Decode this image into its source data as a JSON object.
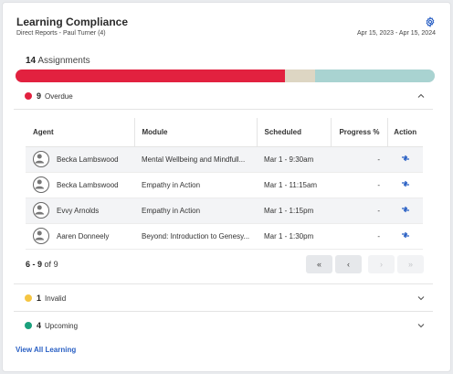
{
  "card": {
    "title": "Learning Compliance",
    "subtitle": "Direct Reports - Paul Turner (4)",
    "date_range": "Apr 15, 2023 - Apr 15, 2024",
    "settings_icon": "gear-icon"
  },
  "summary": {
    "count": "14",
    "label": "Assignments",
    "segments": [
      {
        "name": "overdue",
        "value": 9,
        "color": "#e2213f"
      },
      {
        "name": "invalid",
        "value": 1,
        "color": "#ddd6c3"
      },
      {
        "name": "upcoming",
        "value": 4,
        "color": "#a9d3d1"
      }
    ]
  },
  "sections": {
    "overdue": {
      "count": "9",
      "label": "Overdue",
      "color": "#e2213f",
      "expanded": true
    },
    "invalid": {
      "count": "1",
      "label": "Invalid",
      "color": "#f5c542",
      "expanded": false
    },
    "upcoming": {
      "count": "4",
      "label": "Upcoming",
      "color": "#1aa07c",
      "expanded": false
    }
  },
  "table": {
    "headers": {
      "agent": "Agent",
      "module": "Module",
      "scheduled": "Scheduled",
      "progress": "Progress %",
      "action": "Action"
    },
    "rows": [
      {
        "agent": "Becka Lambswood",
        "module": "Mental Wellbeing and Mindfull...",
        "scheduled": "Mar 1 - 9:30am",
        "progress": "-",
        "action_icon": "reschedule-icon"
      },
      {
        "agent": "Becka Lambswood",
        "module": "Empathy in Action",
        "scheduled": "Mar 1 - 11:15am",
        "progress": "-",
        "action_icon": "reschedule-icon"
      },
      {
        "agent": "Evvy Arnolds",
        "module": "Empathy in Action",
        "scheduled": "Mar 1 - 1:15pm",
        "progress": "-",
        "action_icon": "reschedule-icon"
      },
      {
        "agent": "Aaren Donneely",
        "module": "Beyond: Introduction to Genesy...",
        "scheduled": "Mar 1 - 1:30pm",
        "progress": "-",
        "action_icon": "reschedule-icon"
      }
    ]
  },
  "pagination": {
    "range": "6 - 9",
    "of_label": "of",
    "total": "9",
    "first_label": "«",
    "prev_label": "‹",
    "next_label": "›",
    "last_label": "»"
  },
  "footer": {
    "link_label": "View All Learning"
  }
}
